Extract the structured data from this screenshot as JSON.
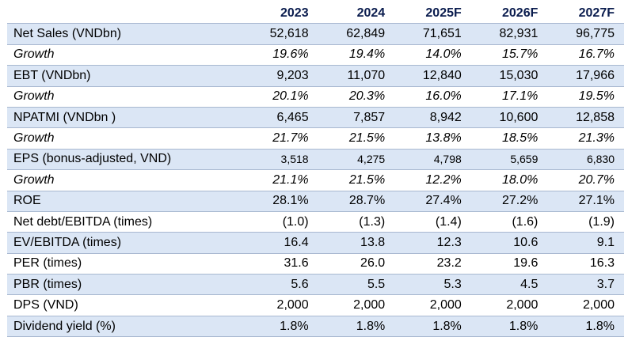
{
  "table": {
    "columns": [
      "2023",
      "2024",
      "2025F",
      "2026F",
      "2027F"
    ],
    "rows": [
      {
        "label": "Net Sales (VNDbn)",
        "values": [
          "52,618",
          "62,849",
          "71,651",
          "82,931",
          "96,775"
        ]
      },
      {
        "label": "Growth",
        "values": [
          "19.6%",
          "19.4%",
          "14.0%",
          "15.7%",
          "16.7%"
        ]
      },
      {
        "label": "EBT (VNDbn)",
        "values": [
          "9,203",
          "11,070",
          "12,840",
          "15,030",
          "17,966"
        ]
      },
      {
        "label": "Growth",
        "values": [
          "20.1%",
          "20.3%",
          "16.0%",
          "17.1%",
          "19.5%"
        ]
      },
      {
        "label": "NPATMI (VNDbn )",
        "values": [
          "6,465",
          "7,857",
          "8,942",
          "10,600",
          "12,858"
        ]
      },
      {
        "label": "Growth",
        "values": [
          "21.7%",
          "21.5%",
          "13.8%",
          "18.5%",
          "21.3%"
        ]
      },
      {
        "label": "EPS (bonus-adjusted, VND)",
        "values": [
          "3,518",
          "4,275",
          "4,798",
          "5,659",
          "6,830"
        ]
      },
      {
        "label": "Growth",
        "values": [
          "21.1%",
          "21.5%",
          "12.2%",
          "18.0%",
          "20.7%"
        ]
      },
      {
        "label": "ROE",
        "values": [
          "28.1%",
          "28.7%",
          "27.4%",
          "27.2%",
          "27.1%"
        ]
      },
      {
        "label": "Net debt/EBITDA (times)",
        "values": [
          "(1.0)",
          "(1.3)",
          "(1.4)",
          "(1.6)",
          "(1.9)"
        ]
      },
      {
        "label": "EV/EBITDA (times)",
        "values": [
          "16.4",
          "13.8",
          "12.3",
          "10.6",
          "9.1"
        ]
      },
      {
        "label": "PER (times)",
        "values": [
          "31.6",
          "26.0",
          "23.2",
          "19.6",
          "16.3"
        ]
      },
      {
        "label": "PBR (times)",
        "values": [
          "5.6",
          "5.5",
          "5.3",
          "4.5",
          "3.7"
        ]
      },
      {
        "label": "DPS (VND)",
        "values": [
          "2,000",
          "2,000",
          "2,000",
          "2,000",
          "2,000"
        ]
      },
      {
        "label": "Dividend yield (%)",
        "values": [
          "1.8%",
          "1.8%",
          "1.8%",
          "1.8%",
          "1.8%"
        ]
      }
    ],
    "colors": {
      "shaded_row": "#dbe6f5",
      "header_text": "#0a1c4e",
      "rule": "#a8b8d0"
    }
  }
}
